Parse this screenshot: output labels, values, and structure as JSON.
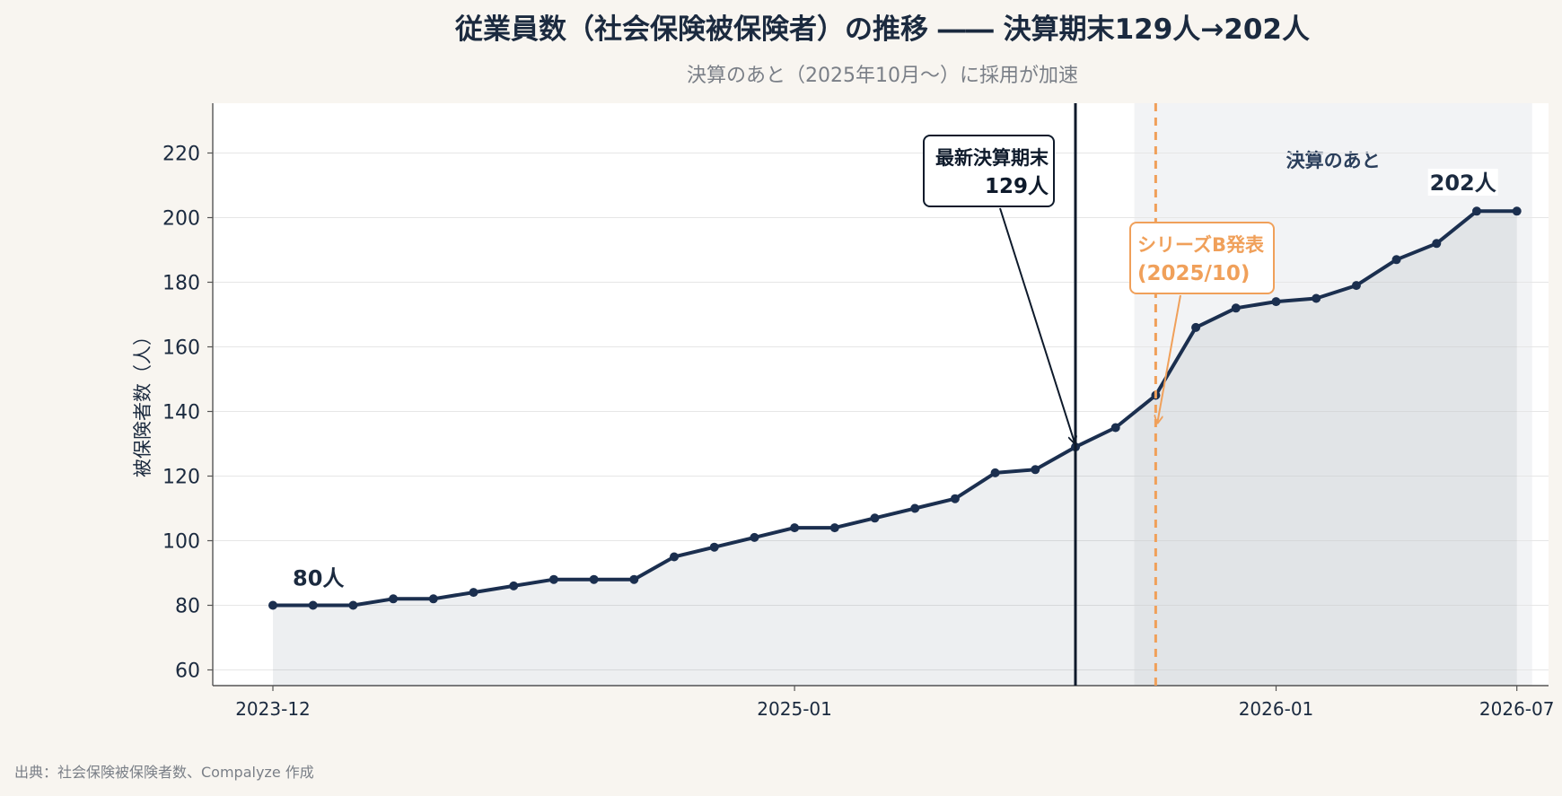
{
  "chart_data": {
    "type": "line",
    "title": "従業員数（社会保険被保険者）の推移 ―― 決算期末129人→202人",
    "subtitle": "決算のあと（2025年10月〜）に採用が加速",
    "xlabel": "",
    "ylabel": "被保険者数（人）",
    "ylim": [
      55,
      235
    ],
    "y_ticks": [
      60,
      80,
      100,
      120,
      140,
      160,
      180,
      200,
      220
    ],
    "x_tick_labels": [
      "2023-12",
      "2025-01",
      "2026-01",
      "2026-07"
    ],
    "grid": "horizontal",
    "series": [
      {
        "x": [
          "2023-12",
          "2024-01",
          "2024-02",
          "2024-03",
          "2024-04",
          "2024-05",
          "2024-06",
          "2024-07",
          "2024-08",
          "2024-09",
          "2024-10",
          "2024-11",
          "2024-12",
          "2025-01",
          "2025-02",
          "2025-03",
          "2025-04",
          "2025-05",
          "2025-06",
          "2025-07",
          "2025-08",
          "2025-09",
          "2025-10",
          "2025-11",
          "2025-12",
          "2026-01",
          "2026-02",
          "2026-03",
          "2026-04",
          "2026-05",
          "2026-06",
          "2026-07"
        ],
        "values": [
          80,
          80,
          80,
          82,
          82,
          84,
          86,
          88,
          88,
          88,
          95,
          98,
          101,
          104,
          104,
          107,
          110,
          113,
          121,
          122,
          129,
          135,
          145,
          166,
          172,
          174,
          175,
          179,
          187,
          192,
          202,
          202
        ],
        "color": "#1b2f4f"
      }
    ],
    "shaded_region": {
      "label": "決算のあと",
      "from": "2025-09-15",
      "to": "2026-07"
    },
    "latest_fiscal_end": {
      "x": "2025-08",
      "label_line1": "最新決算期末",
      "label_line2": "129人"
    },
    "series_b_line": {
      "x": "2025-10",
      "label_line1": "シリーズB発表",
      "label_line2": "(2025/10)",
      "color": "#f0a05a"
    },
    "point_labels": [
      {
        "x": "2023-12",
        "text": "80人"
      },
      {
        "x": "2026-07",
        "text": "202人"
      }
    ]
  },
  "source": "出典：社会保険被保険者数、Compalyze 作成"
}
